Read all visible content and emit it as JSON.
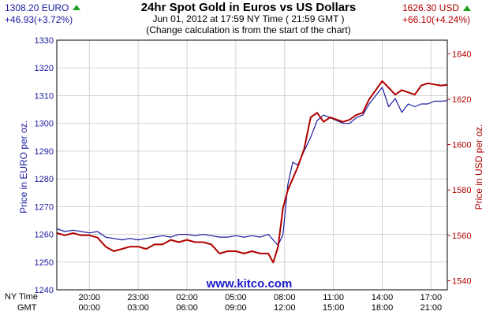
{
  "header": {
    "eur_price": "1308.20 EURO",
    "eur_change": "+46.93(+3.72%)",
    "usd_price": "1626.30 USD",
    "usd_change": "+66.10(+4.24%)",
    "title": "24hr Spot Gold in Euros vs US Dollars",
    "subtitle": "Jun 01, 2012 at 17:59 NY Time ( 21:59 GMT )",
    "note": "(Change calculation is from the start of the chart)",
    "watermark": "www.kitco.com",
    "ny_time_label": "NY Time",
    "gmt_label": "GMT"
  },
  "chart_data": {
    "type": "line",
    "title": "24hr Spot Gold in Euros vs US Dollars",
    "ylabel_left": "Price in EURO per oz.",
    "ylabel_right": "Price in USD per oz.",
    "ylim_left": [
      1240,
      1330
    ],
    "ylim_right": [
      1536,
      1646
    ],
    "y_ticks_left": [
      1240,
      1250,
      1260,
      1270,
      1280,
      1290,
      1300,
      1310,
      1320,
      1330
    ],
    "y_ticks_right": [
      1540,
      1560,
      1580,
      1600,
      1620,
      1640
    ],
    "x_ticks_ny": [
      "20:00",
      "23:00",
      "02:00",
      "05:00",
      "08:00",
      "11:00",
      "14:00",
      "17:00"
    ],
    "x_ticks_gmt": [
      "00:00",
      "03:00",
      "06:00",
      "09:00",
      "12:00",
      "15:00",
      "18:00",
      "21:00"
    ],
    "x_tick_positions_hours": [
      2,
      5,
      8,
      11,
      14,
      17,
      20,
      23
    ],
    "xlim_hours": [
      0,
      24
    ],
    "grid": true,
    "colors": {
      "eur": "#1a1aa0",
      "usd": "#b00000",
      "up_arrow": "#1fa01f",
      "watermark": "#1a1ac8"
    },
    "series": [
      {
        "name": "EURO",
        "axis": "left",
        "x": [
          0,
          0.5,
          1,
          1.5,
          2,
          2.5,
          3,
          3.5,
          4,
          4.5,
          5,
          5.5,
          6,
          6.5,
          7,
          7.5,
          8,
          8.5,
          9,
          9.5,
          10,
          10.5,
          11,
          11.5,
          12,
          12.5,
          13,
          13.3,
          13.6,
          13.9,
          14.2,
          14.5,
          14.8,
          15.2,
          15.6,
          16,
          16.4,
          16.8,
          17.2,
          17.6,
          18,
          18.4,
          18.8,
          19.2,
          19.6,
          20,
          20.4,
          20.8,
          21.2,
          21.6,
          22,
          22.4,
          22.8,
          23.2,
          23.6,
          24
        ],
        "values": [
          1262,
          1261,
          1261.5,
          1261,
          1260.5,
          1261,
          1259,
          1258.5,
          1258,
          1258.5,
          1258,
          1258.5,
          1259,
          1259.5,
          1259,
          1260,
          1260,
          1259.5,
          1260,
          1259.5,
          1259,
          1259,
          1259.5,
          1259,
          1259.5,
          1259,
          1260,
          1258,
          1256,
          1260,
          1278,
          1286,
          1285,
          1290,
          1295,
          1301,
          1303,
          1302,
          1301,
          1300,
          1300,
          1302,
          1303,
          1307,
          1310,
          1313,
          1306,
          1309,
          1304,
          1307,
          1306,
          1307,
          1307,
          1308,
          1308,
          1308.2
        ]
      },
      {
        "name": "USD",
        "axis": "right",
        "x": [
          0,
          0.5,
          1,
          1.5,
          2,
          2.5,
          3,
          3.5,
          4,
          4.5,
          5,
          5.5,
          6,
          6.5,
          7,
          7.5,
          8,
          8.5,
          9,
          9.5,
          10,
          10.5,
          11,
          11.5,
          12,
          12.5,
          13,
          13.3,
          13.6,
          13.9,
          14.2,
          14.5,
          14.8,
          15.2,
          15.6,
          16,
          16.4,
          16.8,
          17.2,
          17.6,
          18,
          18.4,
          18.8,
          19.2,
          19.6,
          20,
          20.4,
          20.8,
          21.2,
          21.6,
          22,
          22.4,
          22.8,
          23.2,
          23.6,
          24
        ],
        "values": [
          1561,
          1560,
          1561,
          1560,
          1560,
          1559,
          1555,
          1553,
          1554,
          1555,
          1555,
          1554,
          1556,
          1556,
          1558,
          1557,
          1558,
          1557,
          1557,
          1556,
          1552,
          1553,
          1553,
          1552,
          1553,
          1552,
          1552,
          1548,
          1555,
          1572,
          1580,
          1585,
          1590,
          1598,
          1612,
          1614,
          1610,
          1612,
          1611,
          1610,
          1611,
          1613,
          1614,
          1620,
          1624,
          1628,
          1625,
          1622,
          1624,
          1623,
          1622,
          1626,
          1627,
          1626.5,
          1626,
          1626.3
        ]
      }
    ]
  }
}
